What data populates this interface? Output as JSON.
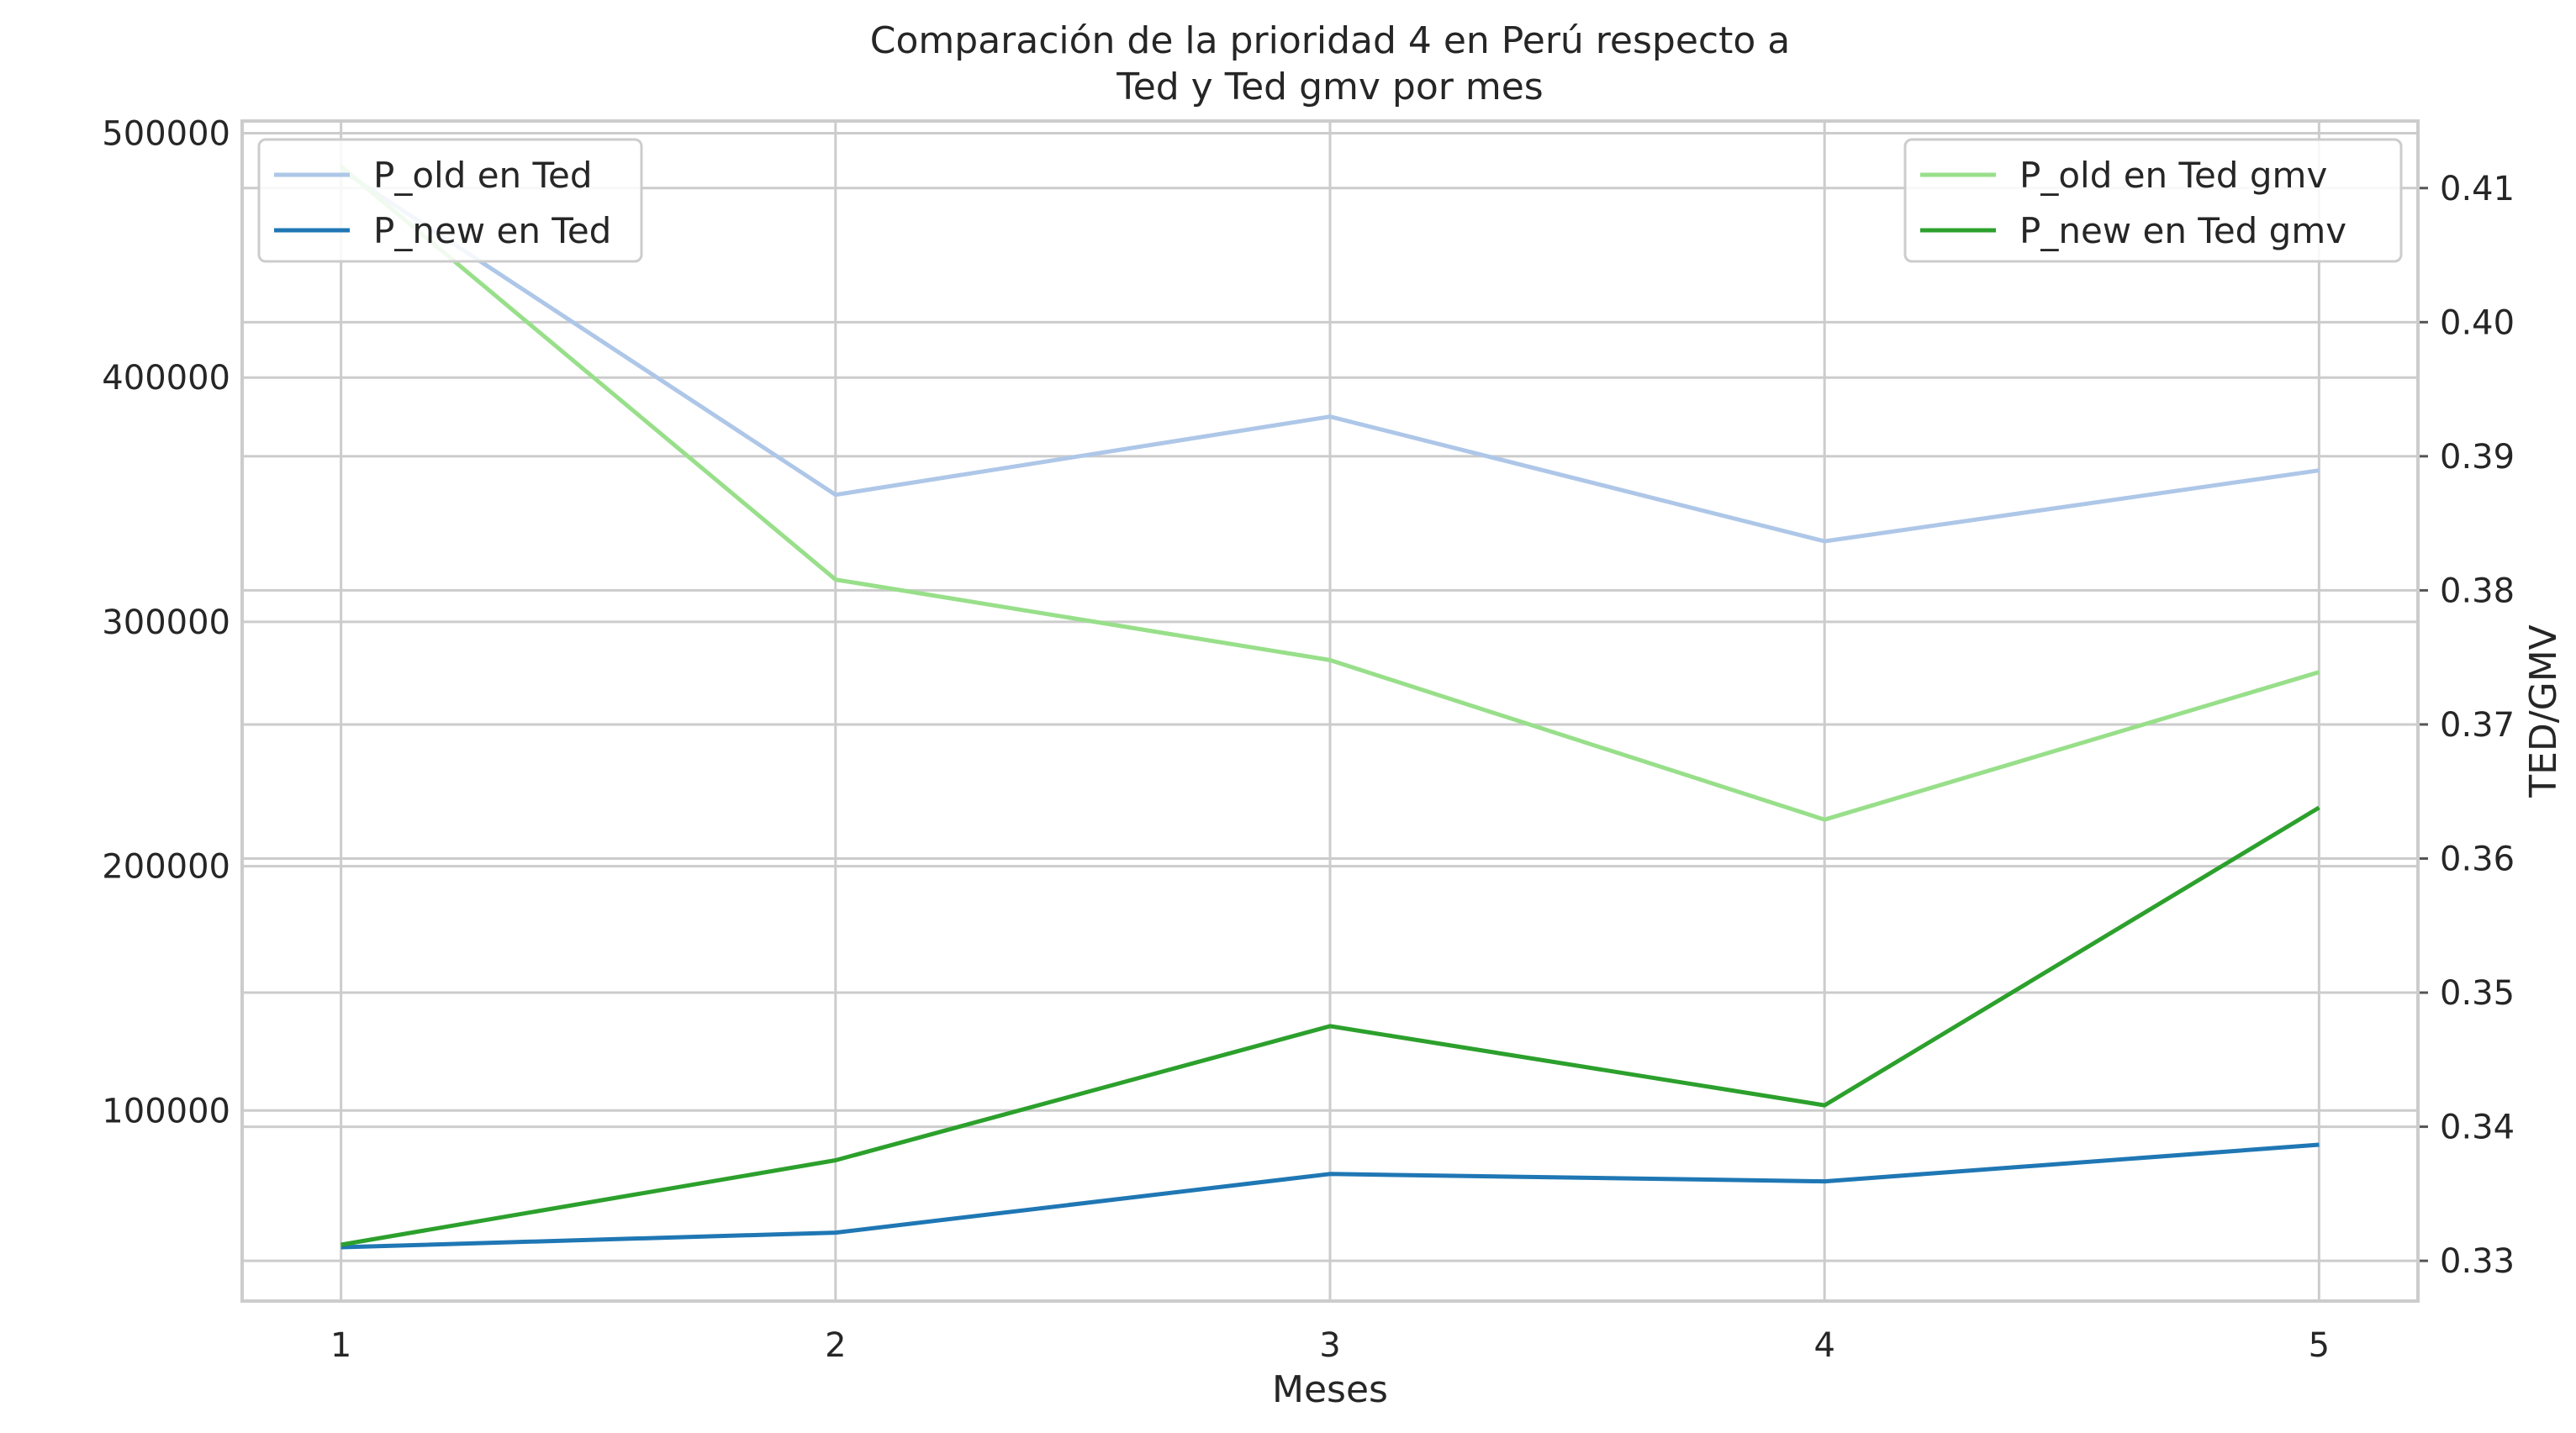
{
  "chart_data": {
    "type": "line",
    "title": "Comparación de la prioridad 4 en Perú respecto a\nTed y Ted gmv por mes",
    "xlabel": "Meses",
    "ylabel": "",
    "y2label": "TED/GMV",
    "x": [
      1,
      2,
      3,
      4,
      5
    ],
    "x_ticks": [
      "1",
      "2",
      "3",
      "4",
      "5"
    ],
    "xlim": [
      0.8,
      5.2
    ],
    "ylim": [
      22000,
      505000
    ],
    "y_ticks": [
      100000,
      200000,
      300000,
      400000,
      500000
    ],
    "y_tick_labels": [
      "100000",
      "200000",
      "300000",
      "400000",
      "500000"
    ],
    "y2lim": [
      0.327,
      0.415
    ],
    "y2_ticks": [
      0.33,
      0.34,
      0.35,
      0.36,
      0.37,
      0.38,
      0.39,
      0.4,
      0.41
    ],
    "y2_tick_labels": [
      "0.33",
      "0.34",
      "0.35",
      "0.36",
      "0.37",
      "0.38",
      "0.39",
      "0.40",
      "0.41"
    ],
    "grid": true,
    "series": [
      {
        "name": "P_old en Ted",
        "axis": "left",
        "color": "#aec7e8",
        "values": [
          485000,
          352000,
          384000,
          333000,
          362000
        ]
      },
      {
        "name": "P_new en Ted",
        "axis": "left",
        "color": "#1f77b4",
        "values": [
          44000,
          50000,
          74000,
          71000,
          86000
        ]
      },
      {
        "name": "P_old en Ted gmv",
        "axis": "right",
        "color": "#98df8a",
        "values": [
          0.4116,
          0.3808,
          0.3748,
          0.3629,
          0.3739
        ]
      },
      {
        "name": "P_new en Ted gmv",
        "axis": "right",
        "color": "#2ca02c",
        "values": [
          0.3312,
          0.3375,
          0.3475,
          0.3416,
          0.3638
        ]
      }
    ],
    "legends": [
      {
        "placement": "upper-left",
        "series": [
          "P_old en Ted",
          "P_new en Ted"
        ]
      },
      {
        "placement": "upper-right",
        "series": [
          "P_old en Ted gmv",
          "P_new en Ted gmv"
        ]
      }
    ]
  }
}
